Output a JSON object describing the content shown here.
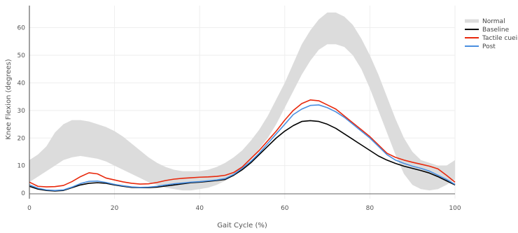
{
  "chart_data": {
    "type": "line",
    "title": "",
    "xlabel": "Gait Cycle (%)",
    "ylabel": "Knee Flexion (degrees)",
    "xlim": [
      0,
      100
    ],
    "ylim": [
      -2,
      68
    ],
    "x_ticks": [
      0,
      20,
      40,
      60,
      80,
      100
    ],
    "y_ticks": [
      0,
      10,
      20,
      30,
      40,
      50,
      60
    ],
    "grid": true,
    "legend_position": "top-right",
    "band": {
      "name": "Normal",
      "color": "#dcdcdc",
      "x": [
        0,
        2,
        4,
        6,
        8,
        10,
        12,
        14,
        16,
        18,
        20,
        22,
        24,
        26,
        28,
        30,
        32,
        34,
        36,
        38,
        40,
        42,
        44,
        46,
        48,
        50,
        52,
        54,
        56,
        58,
        60,
        62,
        64,
        66,
        68,
        70,
        72,
        74,
        76,
        78,
        80,
        82,
        84,
        86,
        88,
        90,
        92,
        94,
        96,
        98,
        100
      ],
      "lower": [
        4,
        6,
        8,
        10,
        12,
        13,
        13.5,
        13,
        12.5,
        11.5,
        10,
        8.5,
        7,
        5.5,
        4,
        3,
        2,
        1.5,
        1,
        1,
        1.5,
        2,
        3,
        4.5,
        6.5,
        9,
        12,
        16,
        20,
        25,
        31,
        37,
        43,
        48,
        52,
        54,
        54,
        53,
        50,
        45,
        38,
        30,
        22,
        14,
        7,
        3,
        1.5,
        1,
        1.5,
        3,
        5
      ],
      "upper": [
        12,
        14,
        17,
        22,
        25,
        26.5,
        26.5,
        26,
        25,
        24,
        22.5,
        20.5,
        18,
        15.5,
        13,
        11,
        9.5,
        8.5,
        8,
        8,
        8,
        8.5,
        9.5,
        11,
        13,
        15.5,
        19,
        23,
        28,
        34,
        40,
        47,
        54,
        59,
        63,
        65.5,
        65.5,
        64,
        61,
        56,
        50,
        43,
        35,
        27,
        20,
        15,
        12,
        11,
        10,
        10,
        12
      ]
    },
    "series": [
      {
        "name": "Baseline",
        "color": "#000000",
        "x": [
          0,
          2,
          4,
          6,
          8,
          10,
          12,
          14,
          16,
          18,
          20,
          22,
          24,
          26,
          28,
          30,
          32,
          34,
          36,
          38,
          40,
          42,
          44,
          46,
          48,
          50,
          52,
          54,
          56,
          58,
          60,
          62,
          64,
          66,
          68,
          70,
          72,
          74,
          76,
          78,
          80,
          82,
          84,
          86,
          88,
          90,
          92,
          94,
          96,
          98,
          100
        ],
        "y": [
          2.5,
          1.5,
          1,
          0.8,
          1,
          2,
          3,
          3.6,
          3.8,
          3.6,
          3,
          2.5,
          2.1,
          2,
          2,
          2.2,
          2.6,
          3,
          3.4,
          3.8,
          4,
          4.3,
          4.6,
          5,
          6.5,
          8.5,
          11,
          14,
          17,
          20,
          22.5,
          24.5,
          26,
          26.3,
          26,
          25,
          23.5,
          21.5,
          19.5,
          17.5,
          15.5,
          13.5,
          12,
          10.8,
          9.8,
          9,
          8.2,
          7.3,
          6,
          4.5,
          3
        ]
      },
      {
        "name": "Tactile cueing",
        "color": "#e8280c",
        "x": [
          0,
          2,
          4,
          6,
          8,
          10,
          12,
          14,
          16,
          18,
          20,
          22,
          24,
          26,
          28,
          30,
          32,
          34,
          36,
          38,
          40,
          42,
          44,
          46,
          48,
          50,
          52,
          54,
          56,
          58,
          60,
          62,
          64,
          66,
          68,
          70,
          72,
          74,
          76,
          78,
          80,
          82,
          84,
          86,
          88,
          90,
          92,
          94,
          96,
          98,
          100
        ],
        "y": [
          4,
          2.5,
          2.3,
          2.4,
          2.8,
          4.2,
          6,
          7.4,
          7,
          5.5,
          4.8,
          4.1,
          3.6,
          3.3,
          3.4,
          3.9,
          4.6,
          5.1,
          5.4,
          5.6,
          5.8,
          5.9,
          6.1,
          6.5,
          7.5,
          9.5,
          12.5,
          15.5,
          19,
          22.5,
          26.5,
          30,
          32.5,
          33.8,
          33.5,
          32,
          30.5,
          28,
          25.5,
          23,
          20.5,
          17.5,
          14.5,
          13,
          12,
          11.2,
          10.5,
          9.8,
          8.8,
          6.5,
          4
        ]
      },
      {
        "name": "Post",
        "color": "#4a8fe0",
        "x": [
          0,
          2,
          4,
          6,
          8,
          10,
          12,
          14,
          16,
          18,
          20,
          22,
          24,
          26,
          28,
          30,
          32,
          34,
          36,
          38,
          40,
          42,
          44,
          46,
          48,
          50,
          52,
          54,
          56,
          58,
          60,
          62,
          64,
          66,
          68,
          70,
          72,
          74,
          76,
          78,
          80,
          82,
          84,
          86,
          88,
          90,
          92,
          94,
          96,
          98,
          100
        ],
        "y": [
          3,
          1.8,
          1.2,
          1,
          1.2,
          2.2,
          3.5,
          4.3,
          4.4,
          3.9,
          3.2,
          2.7,
          2.3,
          2.1,
          2.2,
          2.5,
          3,
          3.4,
          3.7,
          4,
          4.2,
          4.5,
          4.8,
          5.3,
          6.8,
          9,
          11.5,
          14.5,
          18,
          21.5,
          25,
          28.5,
          30.5,
          31.8,
          32,
          31,
          29.5,
          27.5,
          25,
          22.5,
          20,
          17,
          14,
          12,
          10.8,
          9.8,
          9,
          8,
          6.5,
          5,
          3.2
        ]
      }
    ],
    "legend": [
      "Normal",
      "Baseline",
      "Tactile cueing",
      "Post"
    ]
  }
}
